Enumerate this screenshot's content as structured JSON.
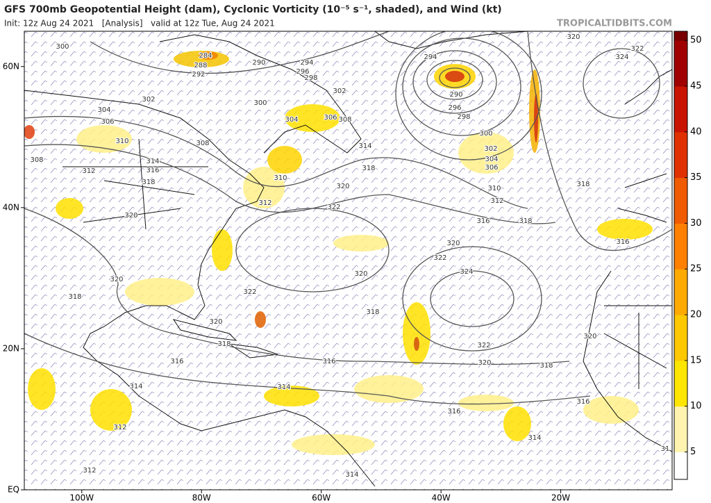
{
  "header": {
    "title": "GFS 700mb Geopotential Height (dam), Cyclonic Vorticity (10⁻⁵ s⁻¹, shaded), and Wind (kt)",
    "subtitle": "Init: 12z Aug 24 2021   [Analysis]   valid at 12z Tue, Aug 24 2021",
    "site": "TROPICALTIDBITS.COM"
  },
  "map": {
    "xlim": [
      -109.6,
      -1.4
    ],
    "ylim": [
      0,
      65
    ],
    "xticks": [
      {
        "value": -100,
        "label": "100W"
      },
      {
        "value": -80,
        "label": "80W"
      },
      {
        "value": -60,
        "label": "60W"
      },
      {
        "value": -40,
        "label": "40W"
      },
      {
        "value": -20,
        "label": "20W"
      }
    ],
    "yticks": [
      {
        "value": 0,
        "label": "EQ"
      },
      {
        "value": 20,
        "label": "20N"
      },
      {
        "value": 40,
        "label": "40N"
      },
      {
        "value": 60,
        "label": "60N"
      }
    ],
    "contour_labels": [
      "300",
      "284",
      "288",
      "292",
      "290",
      "294",
      "296",
      "298",
      "302",
      "294",
      "290",
      "296",
      "298",
      "300",
      "302",
      "304",
      "306",
      "310",
      "312",
      "316",
      "318",
      "320",
      "322",
      "324",
      "318",
      "316",
      "302",
      "304",
      "306",
      "300",
      "304",
      "306",
      "308",
      "308",
      "310",
      "308",
      "312",
      "314",
      "316",
      "318",
      "310",
      "312",
      "314",
      "318",
      "320",
      "322",
      "320",
      "320",
      "322",
      "324",
      "320",
      "320",
      "318",
      "322",
      "318",
      "320",
      "318",
      "322",
      "320",
      "318",
      "316",
      "316",
      "314",
      "314",
      "320",
      "316",
      "316",
      "312",
      "314",
      "312",
      "314",
      "31"
    ]
  },
  "colorbar": {
    "ylim": [
      2,
      51
    ],
    "yticks": [
      5,
      10,
      15,
      20,
      25,
      30,
      35,
      40,
      45,
      50
    ]
  }
}
